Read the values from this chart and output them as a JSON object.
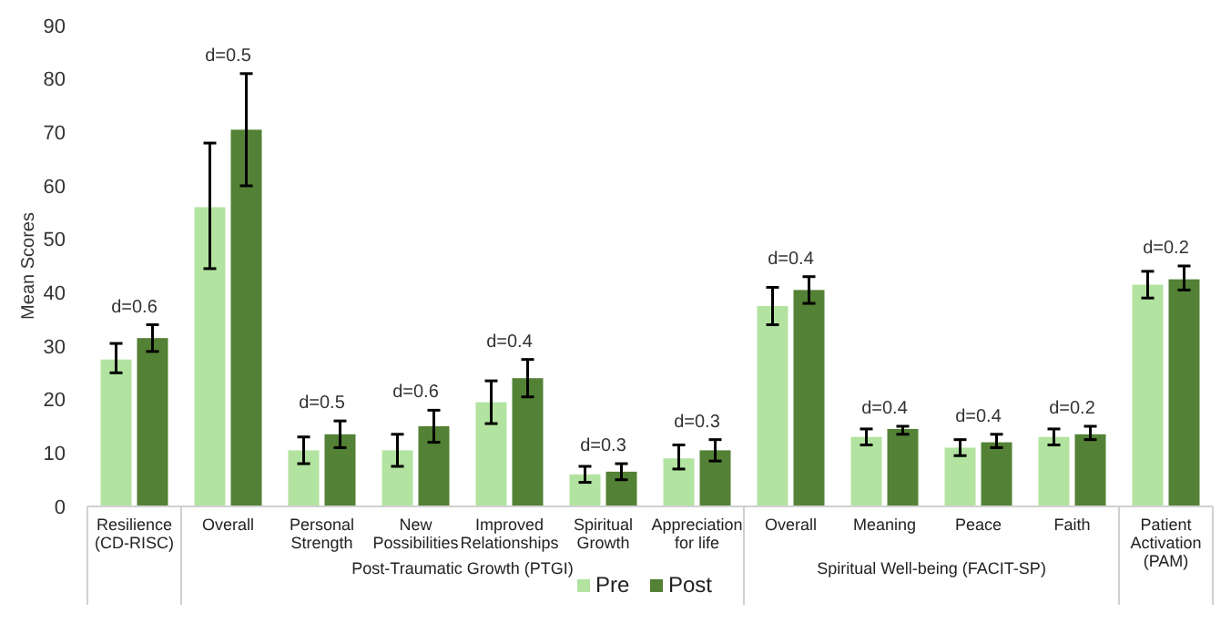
{
  "chart_data": {
    "type": "bar",
    "ylabel": "Mean Scores",
    "categories": [
      "Resilience\n(CD-RISC)",
      "Overall",
      "Personal\nStrength",
      "New\nPossibilities",
      "Improved\nRelationships",
      "Spiritual\nGrowth",
      "Appreciation\nfor life",
      "Overall",
      "Meaning",
      "Peace",
      "Faith",
      "Patient\nActivation\n(PAM)"
    ],
    "series": [
      {
        "name": "Pre",
        "color": "#b3e3a0",
        "values": [
          27.5,
          56,
          10.5,
          10.5,
          19.5,
          6,
          9,
          37.5,
          13,
          11,
          13,
          41.5
        ],
        "errors": [
          [
            25,
            30.5
          ],
          [
            44.5,
            68
          ],
          [
            8,
            13
          ],
          [
            7.5,
            13.5
          ],
          [
            15.5,
            23.5
          ],
          [
            4.5,
            7.5
          ],
          [
            7,
            11.5
          ],
          [
            34,
            41
          ],
          [
            11.5,
            14.5
          ],
          [
            9.5,
            12.5
          ],
          [
            11.5,
            14.5
          ],
          [
            39,
            44
          ]
        ]
      },
      {
        "name": "Post",
        "color": "#538135",
        "values": [
          31.5,
          70.5,
          13.5,
          15,
          24,
          6.5,
          10.5,
          40.5,
          14.5,
          12,
          13.5,
          42.5
        ],
        "errors": [
          [
            29,
            34
          ],
          [
            60,
            81
          ],
          [
            11,
            16
          ],
          [
            12,
            18
          ],
          [
            20.5,
            27.5
          ],
          [
            5,
            8
          ],
          [
            8.5,
            12.5
          ],
          [
            38,
            43
          ],
          [
            13.5,
            15
          ],
          [
            11,
            13.5
          ],
          [
            12.5,
            15
          ],
          [
            40.5,
            45
          ]
        ]
      }
    ],
    "ylim": [
      0,
      90
    ],
    "yticks": [
      0,
      10,
      20,
      30,
      40,
      50,
      60,
      70,
      80,
      90
    ],
    "grid": false,
    "legend": "bottom",
    "annotations": [
      "d=0.6",
      "d=0.5",
      "d=0.5",
      "d=0.6",
      "d=0.4",
      "d=0.3",
      "d=0.3",
      "d=0.4",
      "d=0.4",
      "d=0.4",
      "d=0.2",
      "d=0.2",
      "Post-Traumatic Growth (PTGI)",
      "Spiritual Well-being (FACIT-SP)"
    ]
  }
}
